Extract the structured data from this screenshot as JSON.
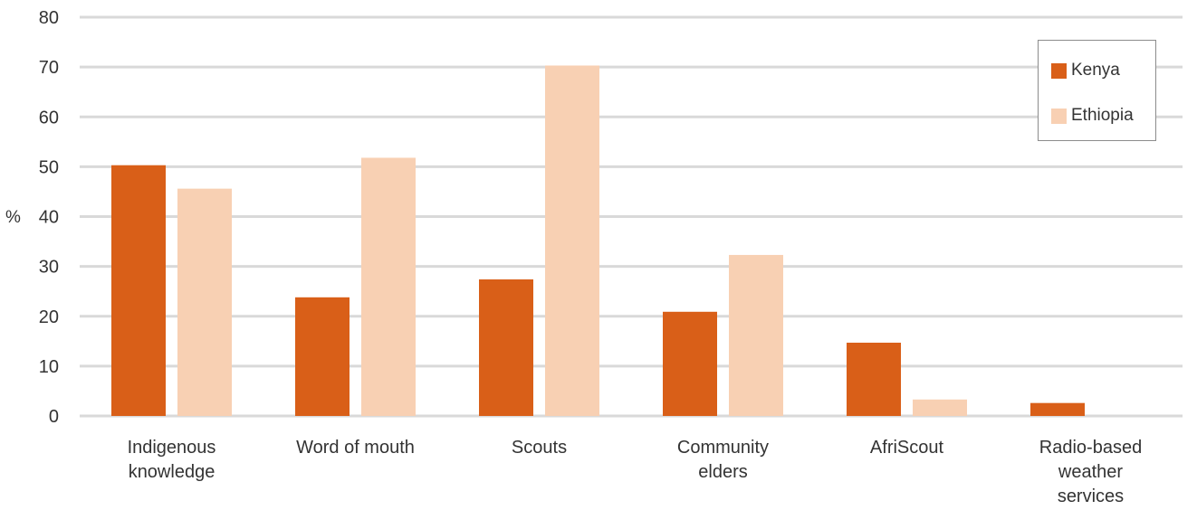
{
  "chart_data": {
    "type": "bar",
    "ylabel": "%",
    "ylim": [
      0,
      80
    ],
    "yticks": [
      0,
      10,
      20,
      30,
      40,
      50,
      60,
      70,
      80
    ],
    "grid": true,
    "legend_position": "top-right",
    "categories": [
      [
        "Indigenous",
        "knowledge"
      ],
      [
        "Word of mouth"
      ],
      [
        "Scouts"
      ],
      [
        "Community",
        "elders"
      ],
      [
        "AfriScout"
      ],
      [
        "Radio-based",
        "weather",
        "services"
      ]
    ],
    "series": [
      {
        "name": "Kenya",
        "color": "#d95f18",
        "values": [
          50.3,
          23.8,
          27.4,
          20.9,
          14.7,
          2.6
        ]
      },
      {
        "name": "Ethiopia",
        "color": "#f8d0b3",
        "values": [
          45.6,
          51.8,
          70.3,
          32.3,
          3.3,
          0
        ]
      }
    ]
  }
}
